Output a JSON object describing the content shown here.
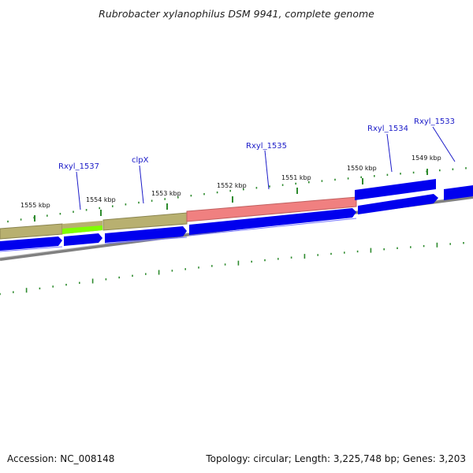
{
  "header": {
    "title": "Rubrobacter xylanophilus DSM 9941, complete genome"
  },
  "footer": {
    "accession": "Accession: NC_008148",
    "summary": "Topology: circular; Length: 3,225,748 bp; Genes: 3,203"
  },
  "ticks": [
    {
      "label": "1555 kbp"
    },
    {
      "label": "1554 kbp"
    },
    {
      "label": "1553 kbp"
    },
    {
      "label": "1552 kbp"
    },
    {
      "label": "1551 kbp"
    },
    {
      "label": "1550 kbp"
    },
    {
      "label": "1549 kbp"
    }
  ],
  "genes": [
    {
      "name": "Rxyl_1537"
    },
    {
      "name": "clpX"
    },
    {
      "name": "Rxyl_1535"
    },
    {
      "name": "Rxyl_1534"
    },
    {
      "name": "Rxyl_1533"
    }
  ],
  "colors": {
    "cds": "#0000ee",
    "feature_olive": "#b8b070",
    "feature_red": "#f08080",
    "feature_green": "#7fff00",
    "backbone": "#808080",
    "tick": "#2e8b2e",
    "gene_label": "#1b1bc8"
  }
}
